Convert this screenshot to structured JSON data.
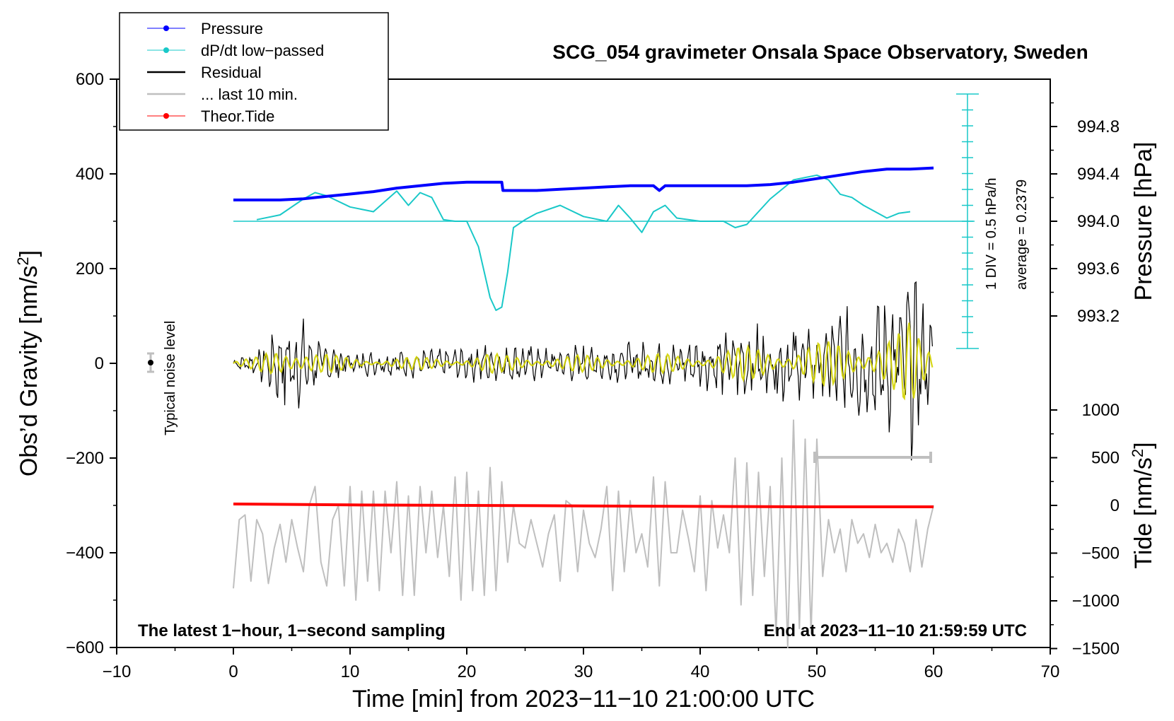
{
  "chart_data": {
    "type": "line",
    "title": "SCG_054 gravimeter Onsala Space Observatory, Sweden",
    "xlabel": "Time [min] from 2023−11−10 21:00:00 UTC",
    "ylabel_left": "Obs’d Gravity [nm/s",
    "ylabel_left_sup": "2",
    "ylabel_left_end": "]",
    "ylabel_right_pressure": "Pressure [hPa]",
    "ylabel_right_tide": "Tide [nm/s",
    "ylabel_right_tide_sup": "2",
    "ylabel_right_tide_end": "]",
    "xlim": [
      -10,
      70
    ],
    "ylim_left": [
      -600,
      600
    ],
    "x_ticks": [
      "−10",
      "0",
      "10",
      "20",
      "30",
      "40",
      "50",
      "60",
      "70"
    ],
    "x_tick_values": [
      -10,
      0,
      10,
      20,
      30,
      40,
      50,
      60,
      70
    ],
    "y_left_ticks": [
      "600",
      "400",
      "200",
      "0",
      "−200",
      "−400",
      "−600"
    ],
    "y_left_tick_values": [
      600,
      400,
      200,
      0,
      -200,
      -400,
      -600
    ],
    "pressure_ticks": [
      "994.8",
      "994.4",
      "994.0",
      "993.6",
      "993.2"
    ],
    "pressure_tick_values": [
      994.8,
      994.4,
      994.0,
      993.6,
      993.2
    ],
    "tide_ticks": [
      "1000",
      "500",
      "0",
      "−500",
      "−1000",
      "−1500"
    ],
    "tide_tick_values": [
      1000,
      500,
      0,
      -500,
      -1000,
      -1500
    ],
    "legend": [
      {
        "label": "Pressure",
        "color": "#0000ff",
        "marker": true
      },
      {
        "label": "dP/dt low−passed",
        "color": "#19c8c8",
        "marker": true
      },
      {
        "label": "Residual",
        "color": "#000000",
        "marker": false
      },
      {
        "label": "... last 10 min.",
        "color": "#bfbfbf",
        "marker": false
      },
      {
        "label": "Theor.Tide",
        "color": "#ff0000",
        "marker": true
      }
    ],
    "annotations": {
      "noise": "Typical noise level",
      "div": "1 DIV = 0.5 hPa/h",
      "average": "average = 0.2379",
      "sampling": "The latest 1−hour, 1−second sampling",
      "end": "End at 2023−11−10 21:59:59 UTC"
    },
    "series": [
      {
        "name": "Pressure",
        "unit": "hPa",
        "color": "#0000ff",
        "x": [
          0,
          2,
          4,
          6,
          8,
          10,
          12,
          14,
          16,
          18,
          20,
          22,
          23,
          23.1,
          26,
          28,
          30,
          32,
          34,
          36,
          36.5,
          37,
          40,
          42,
          44,
          46,
          48,
          50,
          52,
          54,
          56,
          58,
          60
        ],
        "y": [
          994.18,
          994.18,
          994.18,
          994.19,
          994.21,
          994.23,
          994.25,
          994.28,
          994.3,
          994.32,
          994.33,
          994.33,
          994.33,
          994.26,
          994.26,
          994.27,
          994.28,
          994.29,
          994.3,
          994.3,
          994.26,
          994.3,
          994.3,
          994.3,
          994.3,
          994.31,
          994.33,
          994.36,
          994.39,
          994.42,
          994.44,
          994.44,
          994.45
        ]
      },
      {
        "name": "dP/dt low-passed",
        "unit": "DIV (0.5 hPa/h, zero at 994.0 line)",
        "color": "#19c8c8",
        "x": [
          2,
          4,
          6,
          7,
          8,
          10,
          12,
          14,
          15,
          16,
          17,
          18,
          19,
          20,
          21,
          22,
          22.5,
          23,
          23.5,
          24,
          25,
          26,
          28,
          30,
          32,
          33,
          34,
          35,
          36,
          37,
          38,
          40,
          42,
          43,
          44,
          46,
          48,
          50,
          51,
          52,
          53,
          54,
          56,
          57,
          58
        ],
        "y": [
          0.1,
          0.4,
          1.4,
          1.8,
          1.6,
          0.9,
          0.6,
          1.9,
          1.0,
          1.8,
          1.5,
          0.1,
          0.0,
          0.0,
          -1.6,
          -4.8,
          -5.6,
          -5.4,
          -3.2,
          -0.4,
          0.1,
          0.5,
          1.0,
          0.3,
          0.0,
          1.0,
          0.2,
          -0.7,
          0.6,
          1.0,
          0.2,
          0.0,
          0.0,
          -0.4,
          -0.2,
          1.4,
          2.6,
          2.9,
          2.6,
          1.7,
          1.5,
          1.0,
          0.2,
          0.5,
          0.6
        ]
      },
      {
        "name": "Residual",
        "unit": "nm/s2",
        "color": "#000000",
        "x": [
          0,
          2,
          3,
          4,
          5,
          6,
          7,
          8,
          9,
          10,
          12,
          14,
          16,
          18,
          20,
          22,
          23,
          24,
          26,
          28,
          30,
          32,
          34,
          36,
          38,
          40,
          42,
          44,
          46,
          48,
          50,
          52,
          54,
          56,
          57,
          58,
          59,
          60
        ],
        "amplitude": [
          10,
          30,
          60,
          100,
          120,
          90,
          60,
          45,
          35,
          30,
          25,
          30,
          30,
          30,
          35,
          50,
          40,
          40,
          40,
          35,
          40,
          40,
          45,
          45,
          45,
          50,
          70,
          80,
          90,
          80,
          100,
          110,
          120,
          140,
          150,
          200,
          130,
          80
        ]
      },
      {
        "name": "... last 10 min.",
        "unit": "nm/s2 (scaled)",
        "color": "#bfbfbf",
        "x": [
          0,
          0.5,
          1,
          1.5,
          2,
          2.5,
          3,
          3.5,
          4,
          4.5,
          5,
          5.5,
          6,
          6.5,
          7,
          7.5,
          8,
          8.5,
          9,
          9.5,
          10,
          10.5,
          11,
          11.5,
          12,
          12.5,
          13,
          13.5,
          14,
          14.5,
          15,
          15.5,
          16,
          16.5,
          17,
          17.5,
          18,
          18.5,
          19,
          19.5,
          20,
          20.5,
          21,
          21.5,
          22,
          22.5,
          23,
          23.5,
          24,
          24.5,
          25,
          25.5,
          26,
          26.5,
          27,
          27.5,
          28,
          28.5,
          29,
          29.5,
          30,
          30.5,
          31,
          31.5,
          32,
          32.5,
          33,
          33.5,
          34,
          34.5,
          35,
          35.5,
          36,
          36.5,
          37,
          37.5,
          38,
          38.5,
          39,
          39.5,
          40,
          40.5,
          41,
          41.5,
          42,
          42.5,
          43,
          43.5,
          44,
          44.5,
          45,
          45.5,
          46,
          46.5,
          47,
          47.5,
          48,
          48.5,
          49,
          49.5,
          50,
          50.5,
          51,
          51.5,
          52,
          52.5,
          53,
          53.5,
          54,
          54.5,
          55,
          55.5,
          56,
          56.5,
          57,
          57.5,
          58,
          58.5,
          59,
          59.5,
          60
        ],
        "y": [
          -475,
          -330,
          -320,
          -460,
          -330,
          -360,
          -465,
          -390,
          -340,
          -420,
          -330,
          -390,
          -440,
          -300,
          -260,
          -420,
          -470,
          -330,
          -300,
          -470,
          -260,
          -500,
          -270,
          -460,
          -270,
          -480,
          -270,
          -400,
          -250,
          -490,
          -280,
          -490,
          -260,
          -400,
          -270,
          -410,
          -300,
          -450,
          -240,
          -500,
          -230,
          -480,
          -270,
          -490,
          -220,
          -480,
          -250,
          -420,
          -300,
          -380,
          -390,
          -330,
          -380,
          -430,
          -360,
          -320,
          -460,
          -290,
          -300,
          -440,
          -310,
          -380,
          -410,
          -350,
          -260,
          -480,
          -270,
          -440,
          -290,
          -400,
          -360,
          -430,
          -240,
          -470,
          -250,
          -400,
          -400,
          -310,
          -370,
          -440,
          -280,
          -480,
          -290,
          -390,
          -320,
          -400,
          -200,
          -510,
          -210,
          -490,
          -230,
          -450,
          -260,
          -570,
          -200,
          -600,
          -120,
          -560,
          -160,
          -570,
          -160,
          -450,
          -330,
          -400,
          -350,
          -440,
          -330,
          -380,
          -360,
          -410,
          -340,
          -400,
          -380,
          -420,
          -350,
          -380,
          -440,
          -330,
          -430,
          -350,
          -300
        ]
      },
      {
        "name": "Theor.Tide",
        "unit": "nm/s2",
        "color": "#ff0000",
        "x": [
          0,
          10,
          20,
          30,
          40,
          50,
          60
        ],
        "y": [
          15,
          5,
          0,
          -5,
          -10,
          -15,
          -15
        ]
      }
    ]
  }
}
